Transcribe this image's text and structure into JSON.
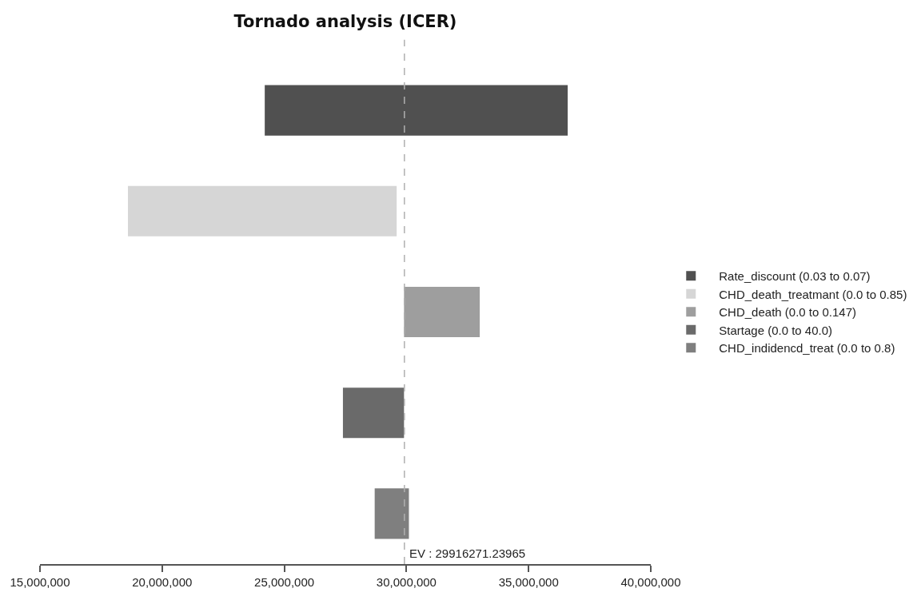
{
  "chart_data": {
    "type": "bar",
    "title": "Tornado analysis (ICER)",
    "orientation": "horizontal",
    "categories": [
      null,
      null,
      null,
      null,
      null
    ],
    "series": [
      {
        "name": "Rate_discount (0.03 to 0.07)",
        "color": "#505050",
        "values": [
          12400000,
          null,
          null,
          null,
          null
        ],
        "base": [
          24200000,
          null,
          null,
          null,
          null
        ]
      },
      {
        "name": "CHD_death_treatmant (0.0 to 0.85)",
        "color": "#d6d6d6",
        "values": [
          null,
          11000000,
          null,
          null,
          null
        ],
        "base": [
          null,
          18600000,
          null,
          null,
          null
        ]
      },
      {
        "name": "CHD_death (0.0 to 0.147)",
        "color": "#9e9e9e",
        "values": [
          null,
          null,
          3100000,
          null,
          null
        ],
        "base": [
          null,
          null,
          29900000,
          null,
          null
        ]
      },
      {
        "name": "Startage (0.0 to 40.0)",
        "color": "#6a6a6a",
        "values": [
          null,
          null,
          null,
          2500000,
          null
        ],
        "base": [
          null,
          null,
          null,
          27400000,
          null
        ]
      },
      {
        "name": "CHD_indidencd_treat (0.0 to 0.8)",
        "color": "#7f7f7f",
        "values": [
          null,
          null,
          null,
          null,
          1400000
        ],
        "base": [
          null,
          null,
          null,
          null,
          28700000
        ]
      }
    ],
    "xlim": [
      15000000,
      40000000
    ],
    "xticks": [
      {
        "value": 15000000,
        "label": "15,000,000"
      },
      {
        "value": 20000000,
        "label": "20,000,000"
      },
      {
        "value": 25000000,
        "label": "25,000,000"
      },
      {
        "value": 30000000,
        "label": "30,000,000"
      },
      {
        "value": 35000000,
        "label": "35,000,000"
      },
      {
        "value": 40000000,
        "label": "40,000,000"
      }
    ],
    "ref_lines": [
      {
        "axis": "x",
        "value": 29916271.23965,
        "label": "EV : 29916271.23965",
        "color": "#b0b0b0",
        "line_style": "dashed"
      }
    ],
    "grid": false,
    "legend": "right",
    "tick_labels": "x"
  }
}
